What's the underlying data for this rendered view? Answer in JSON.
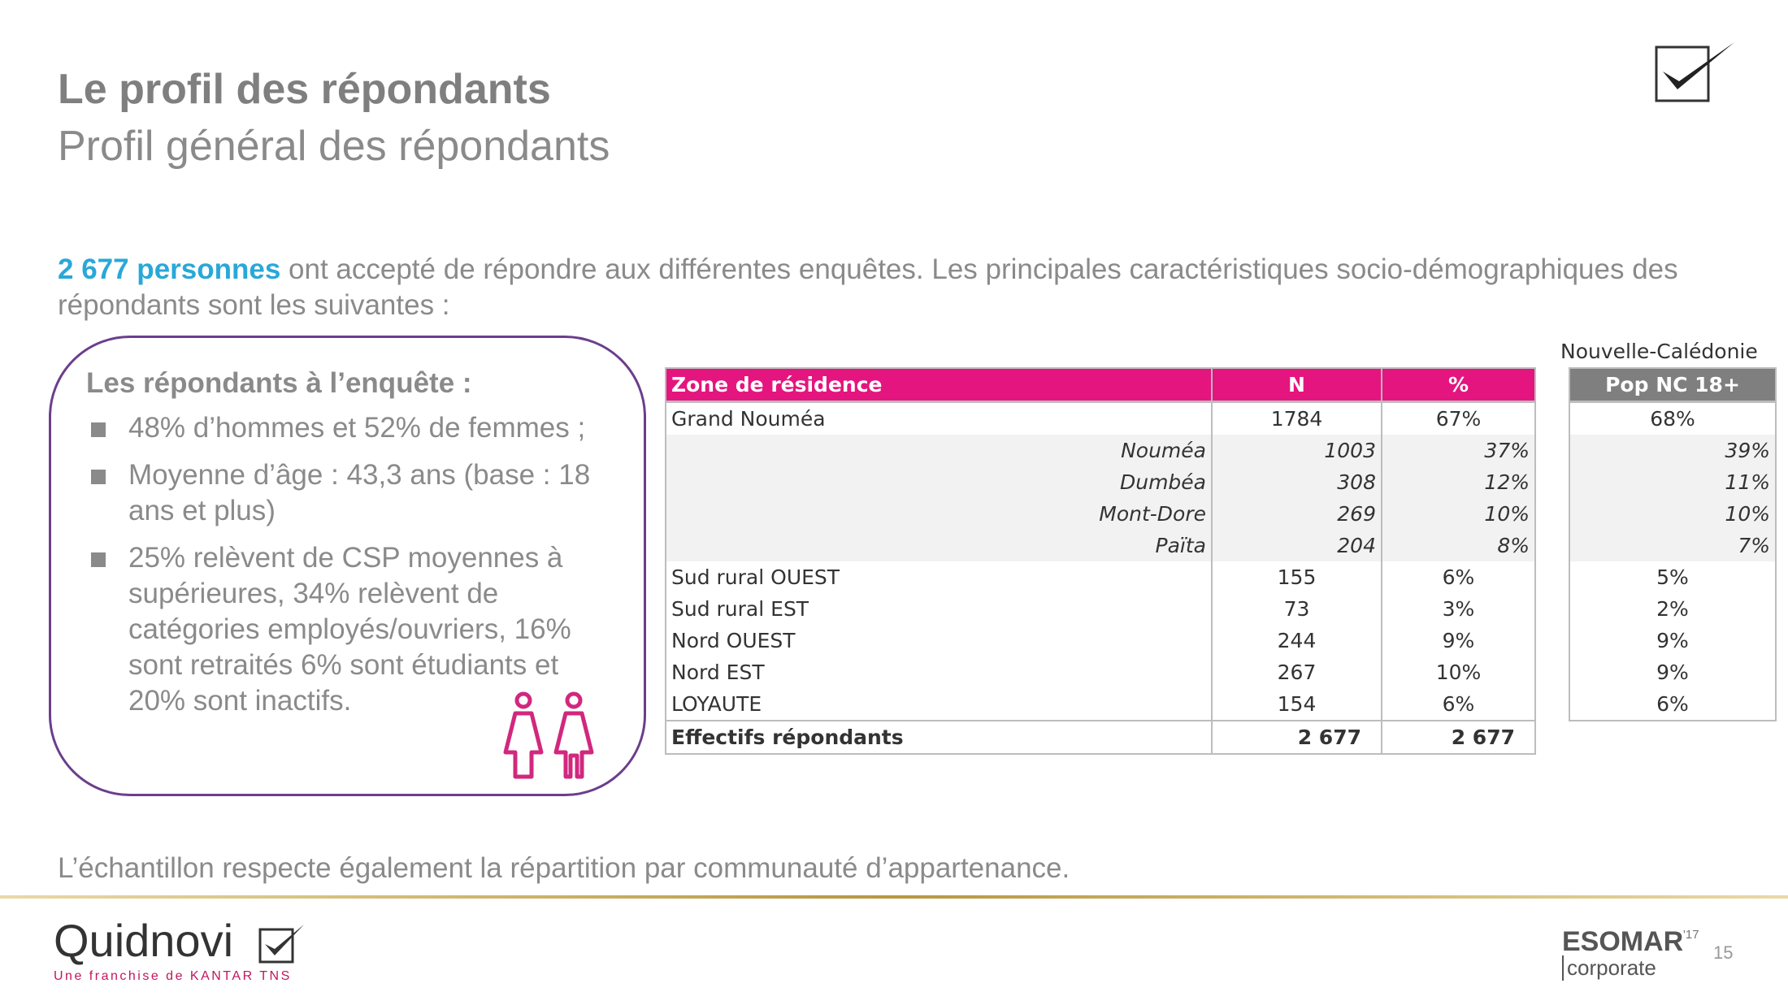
{
  "header": {
    "title": "Le profil des répondants",
    "subtitle": "Profil général des répondants"
  },
  "intro": {
    "highlight": "2 677 personnes",
    "text": " ont accepté de répondre aux différentes enquêtes. Les principales caractéristiques socio-démographiques des répondants sont les suivantes :"
  },
  "profile": {
    "heading": "Les répondants à l’enquête :",
    "items": [
      "48% d’hommes et 52% de femmes ;",
      "Moyenne d’âge : 43,3 ans (base : 18 ans et plus)",
      "25% relèvent de CSP moyennes à supérieures, 34% relèvent de catégories employés/ouvriers, 16% sont retraités 6% sont étudiants et 20% sont inactifs."
    ]
  },
  "zone_table": {
    "headers": [
      "Zone de résidence",
      "N",
      "%"
    ],
    "rows": [
      {
        "label": "Grand Nouméa",
        "n": "1784",
        "pct": "67%"
      },
      {
        "label": "Nouméa",
        "n": "1003",
        "pct": "37%"
      },
      {
        "label": "Dumbéa",
        "n": "308",
        "pct": "12%"
      },
      {
        "label": "Mont-Dore",
        "n": "269",
        "pct": "10%"
      },
      {
        "label": "Païta",
        "n": "204",
        "pct": "8%"
      },
      {
        "label": "Sud rural OUEST",
        "n": "155",
        "pct": "6%"
      },
      {
        "label": "Sud rural EST",
        "n": "73",
        "pct": "3%"
      },
      {
        "label": "Nord OUEST",
        "n": "244",
        "pct": "9%"
      },
      {
        "label": "Nord EST",
        "n": "267",
        "pct": "10%"
      },
      {
        "label": "LOYAUTE",
        "n": "154",
        "pct": "6%"
      }
    ],
    "total": {
      "label": "Effectifs répondants",
      "n": "2 677",
      "pct": "2 677"
    }
  },
  "nc_table": {
    "label": "Nouvelle-Calédonie",
    "header": "Pop NC 18+",
    "values": [
      "68%",
      "39%",
      "11%",
      "10%",
      "7%",
      "5%",
      "2%",
      "9%",
      "9%",
      "6%"
    ]
  },
  "footnote": "L’échantillon respecte également la répartition par communauté d’appartenance.",
  "footer": {
    "brand": "Quidnovi",
    "tagline": "Une franchise de KANTAR TNS",
    "esomar": "ESOMAR",
    "esomar_year": "'17",
    "esomar_sub": "corporate",
    "page_number": "15"
  },
  "colors": {
    "accent_pink": "#e4157e",
    "highlight_blue": "#29a8d8",
    "box_purple": "#6b3e8c",
    "header_grey": "#7f7f7f"
  }
}
